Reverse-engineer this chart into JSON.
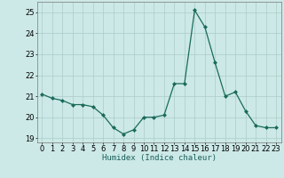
{
  "x": [
    0,
    1,
    2,
    3,
    4,
    5,
    6,
    7,
    8,
    9,
    10,
    11,
    12,
    13,
    14,
    15,
    16,
    17,
    18,
    19,
    20,
    21,
    22,
    23
  ],
  "y": [
    21.1,
    20.9,
    20.8,
    20.6,
    20.6,
    20.5,
    20.1,
    19.5,
    19.2,
    19.4,
    20.0,
    20.0,
    20.1,
    21.6,
    21.6,
    25.1,
    24.3,
    22.6,
    21.0,
    21.2,
    20.3,
    19.6,
    19.5,
    19.5
  ],
  "line_color": "#1a6b5a",
  "marker": "D",
  "marker_size": 2.0,
  "bg_color": "#cce9e7",
  "grid_color": "#aaccca",
  "xlabel": "Humidex (Indice chaleur)",
  "ylim": [
    18.8,
    25.5
  ],
  "yticks": [
    19,
    20,
    21,
    22,
    23,
    24,
    25
  ],
  "xticks": [
    0,
    1,
    2,
    3,
    4,
    5,
    6,
    7,
    8,
    9,
    10,
    11,
    12,
    13,
    14,
    15,
    16,
    17,
    18,
    19,
    20,
    21,
    22,
    23
  ],
  "xlabel_fontsize": 6.5,
  "tick_fontsize": 6.0,
  "linewidth": 0.9
}
